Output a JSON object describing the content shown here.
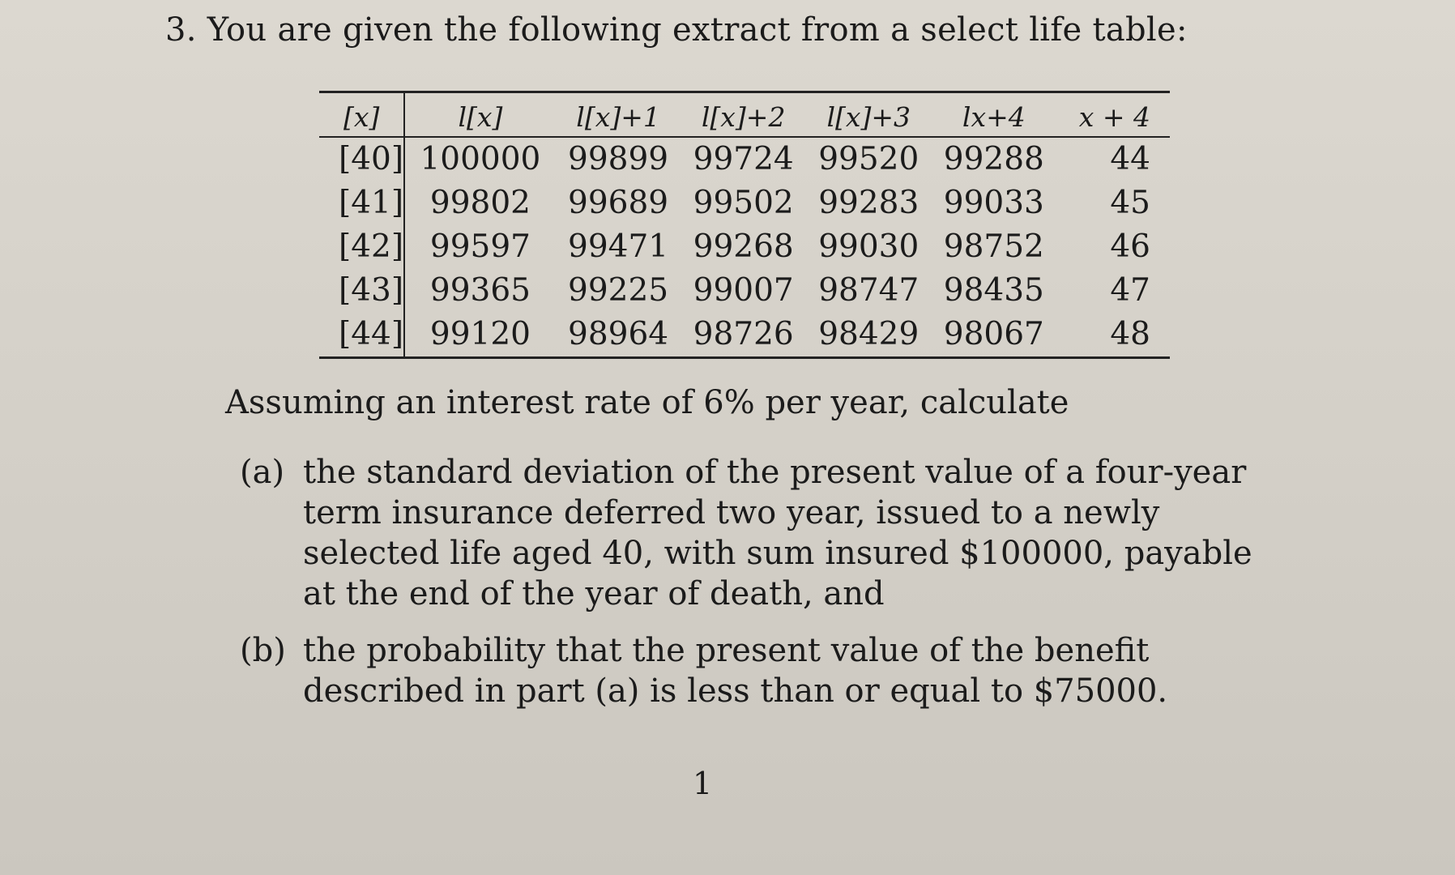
{
  "question": {
    "title": "3. You are given the following extract from a select life table:"
  },
  "life_table": {
    "headers": [
      "[x]",
      "l[x]",
      "l[x]+1",
      "l[x]+2",
      "l[x]+3",
      "lx+4",
      "x + 4"
    ],
    "rows": [
      [
        "[40]",
        "100000",
        "99899",
        "99724",
        "99520",
        "99288",
        "44"
      ],
      [
        "[41]",
        "99802",
        "99689",
        "99502",
        "99283",
        "99033",
        "45"
      ],
      [
        "[42]",
        "99597",
        "99471",
        "99268",
        "99030",
        "98752",
        "46"
      ],
      [
        "[43]",
        "99365",
        "99225",
        "99007",
        "98747",
        "98435",
        "47"
      ],
      [
        "[44]",
        "99120",
        "98964",
        "98726",
        "98429",
        "98067",
        "48"
      ]
    ]
  },
  "intro": "Assuming an interest rate of 6% per year, calculate",
  "parts": [
    {
      "label": "(a)",
      "text": "the standard deviation of the present value of a four-year term insurance deferred two year, issued to a newly selected life aged 40, with sum insured $100000, payable at the end of the year of death, and"
    },
    {
      "label": "(b)",
      "text": "the probability that the present value of the benefit described in part (a) is less than or equal to $75000."
    }
  ],
  "page_number": "1"
}
